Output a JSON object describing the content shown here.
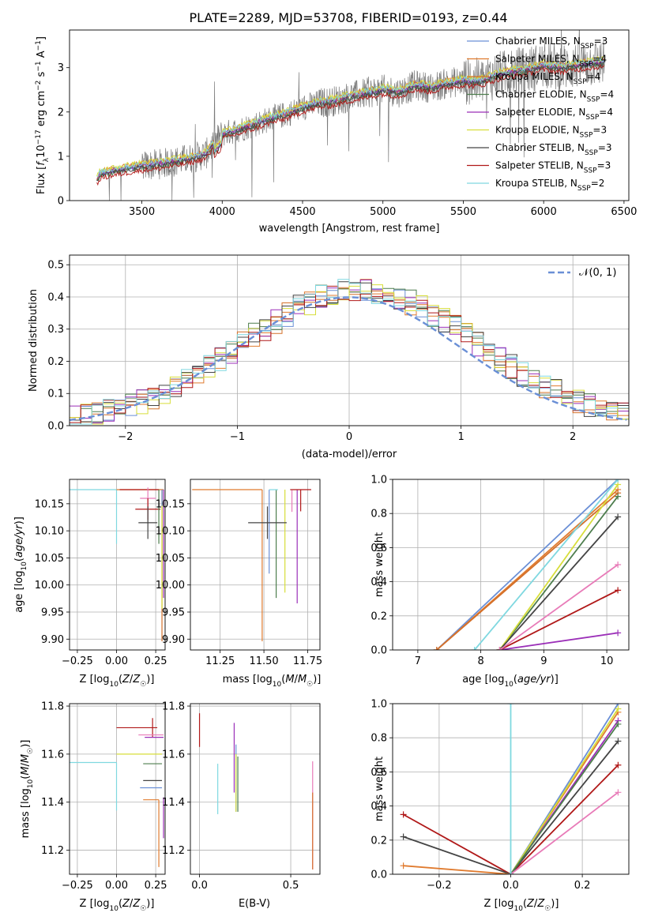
{
  "title": "PLATE=2289, MJD=53708, FIBERID=0193, z=0.44",
  "model_colors": {
    "chabrier_miles": "#6a8fd6",
    "salpeter_miles": "#e07b2f",
    "kroupa_miles": "#d4702a",
    "chabrier_elodie": "#4d7d4d",
    "salpeter_elodie": "#9b2fb8",
    "kroupa_elodie": "#d7de3a",
    "chabrier_stelib": "#444444",
    "salpeter_stelib": "#b01818",
    "kroupa_stelib": "#7fd8e0",
    "data": "#7a7a7a",
    "pink": "#e87bb8",
    "gray": "#999999"
  },
  "chart_data": [
    {
      "type": "line",
      "xlabel": "wavelength [Angstrom, rest frame]",
      "ylabel": "Flux [f_λ 10^-17 erg cm^-2 s^-1 A^-1]",
      "xlim": [
        3050,
        6530
      ],
      "ylim": [
        0,
        3.85
      ],
      "x_ticks": [
        "3500",
        "4000",
        "4500",
        "5000",
        "5500",
        "6000",
        "6500"
      ],
      "y_ticks": [
        "0",
        "1",
        "2",
        "3"
      ],
      "grid": false,
      "legend_position": "right",
      "legend": [
        {
          "name": "Chabrier MILES, N",
          "sub": "SSP",
          "suffix": "=3",
          "color_key": "chabrier_miles"
        },
        {
          "name": "Salpeter MILES, N",
          "sub": "SSP",
          "suffix": "=4",
          "color_key": "salpeter_miles"
        },
        {
          "name": "Kroupa MILES, N",
          "sub": "SSP",
          "suffix": "=4",
          "color_key": "kroupa_miles"
        },
        {
          "name": "Chabrier ELODIE, N",
          "sub": "SSP",
          "suffix": "=4",
          "color_key": "chabrier_elodie"
        },
        {
          "name": "Salpeter ELODIE, N",
          "sub": "SSP",
          "suffix": "=4",
          "color_key": "salpeter_elodie"
        },
        {
          "name": "Kroupa ELODIE, N",
          "sub": "SSP",
          "suffix": "=3",
          "color_key": "kroupa_elodie"
        },
        {
          "name": "Chabrier STELIB, N",
          "sub": "SSP",
          "suffix": "=3",
          "color_key": "chabrier_stelib"
        },
        {
          "name": "Salpeter STELIB, N",
          "sub": "SSP",
          "suffix": "=3",
          "color_key": "salpeter_stelib"
        },
        {
          "name": "Kroupa STELIB, N",
          "sub": "SSP",
          "suffix": "=2",
          "color_key": "kroupa_stelib"
        }
      ],
      "continuum": {
        "x": [
          3220,
          3240,
          3300,
          3400,
          3500,
          3600,
          3700,
          3800,
          3900,
          3950,
          4000,
          4100,
          4200,
          4300,
          4400,
          4500,
          4600,
          4700,
          4800,
          4900,
          5000,
          5100,
          5200,
          5300,
          5400,
          5500,
          5600,
          5700,
          5800,
          5900,
          6000,
          6100,
          6200,
          6300,
          6380
        ],
        "y": [
          0.45,
          0.6,
          0.65,
          0.72,
          0.78,
          0.82,
          0.88,
          0.95,
          1.05,
          1.3,
          1.5,
          1.6,
          1.72,
          1.85,
          1.95,
          2.1,
          2.2,
          2.25,
          2.35,
          2.42,
          2.5,
          2.45,
          2.6,
          2.55,
          2.65,
          2.7,
          2.68,
          2.82,
          2.9,
          2.95,
          3.05,
          3.0,
          3.05,
          3.1,
          3.12
        ]
      },
      "model_offsets": [
        0.0,
        0.06,
        0.03,
        -0.04,
        0.02,
        0.08,
        -0.03,
        -0.1,
        0.05
      ]
    },
    {
      "type": "histogram",
      "xlabel": "(data-model)/error",
      "ylabel": "Normed distribution",
      "xlim": [
        -2.5,
        2.5
      ],
      "ylim": [
        0,
        0.53
      ],
      "x_ticks": [
        "-2",
        "-1",
        "0",
        "1",
        "2"
      ],
      "y_ticks": [
        "0.0",
        "0.1",
        "0.2",
        "0.3",
        "0.4",
        "0.5"
      ],
      "grid": true,
      "legend": [
        {
          "name": "𝒩(0, 1)",
          "style": "dashed",
          "color_key": "chabrier_miles"
        }
      ],
      "legend_position": "top-right",
      "bin_width": 0.1,
      "reference_curve": "normal(0,1)"
    },
    {
      "type": "errorbar",
      "xlabel": "Z [log10(Z/Z☉)]",
      "ylabel": "age [log10(age/yr)]",
      "xlim": [
        -0.3,
        0.31
      ],
      "ylim": [
        9.88,
        10.195
      ],
      "x_ticks": [
        "-0.25",
        "0.00",
        "0.25"
      ],
      "y_ticks": [
        "9.90",
        "9.95",
        "10.00",
        "10.05",
        "10.10",
        "10.15"
      ],
      "points": [
        {
          "x": 0.0,
          "y": 10.176,
          "xl": 0.3,
          "xh": 0.0,
          "yl": 0.1,
          "yh": 0.0,
          "color_key": "kroupa_stelib"
        },
        {
          "x": 0.27,
          "y": 10.176,
          "xl": 0.27,
          "xh": 0.02,
          "yl": 0.0,
          "yh": 0.0,
          "color_key": "salpeter_miles"
        },
        {
          "x": 0.29,
          "y": 10.176,
          "xl": 0.0,
          "xh": 0.01,
          "yl": 0.28,
          "yh": 0.0,
          "color_key": "kroupa_miles"
        },
        {
          "x": 0.3,
          "y": 10.176,
          "xl": 0.0,
          "xh": 0.0,
          "yl": 0.2,
          "yh": 0.0,
          "color_key": "salpeter_elodie"
        },
        {
          "x": 0.29,
          "y": 10.176,
          "xl": 0.0,
          "xh": 0.0,
          "yl": 0.22,
          "yh": 0.0,
          "color_key": "kroupa_elodie"
        },
        {
          "x": 0.22,
          "y": 10.176,
          "xl": 0.2,
          "xh": 0.05,
          "yl": 0.0,
          "yh": 0.0,
          "color_key": "salpeter_stelib"
        },
        {
          "x": 0.2,
          "y": 10.16,
          "xl": 0.05,
          "xh": 0.05,
          "yl": 0.02,
          "yh": 0.02,
          "color_key": "pink"
        },
        {
          "x": 0.2,
          "y": 10.14,
          "xl": 0.08,
          "xh": 0.08,
          "yl": 0.02,
          "yh": 0.02,
          "color_key": "salpeter_stelib"
        },
        {
          "x": 0.2,
          "y": 10.115,
          "xl": 0.06,
          "xh": 0.06,
          "yl": 0.03,
          "yh": 0.03,
          "color_key": "chabrier_stelib"
        },
        {
          "x": 0.27,
          "y": 10.176,
          "xl": 0.0,
          "xh": 0.0,
          "yl": 0.1,
          "yh": 0.0,
          "color_key": "chabrier_elodie"
        },
        {
          "x": 0.29,
          "y": 10.176,
          "xl": 0.0,
          "xh": 0.0,
          "yl": 0.03,
          "yh": 0.0,
          "color_key": "chabrier_miles"
        }
      ]
    },
    {
      "type": "errorbar",
      "xlabel": "mass [log10(M/M☉)]",
      "ylabel": "",
      "xlim": [
        11.08,
        11.82
      ],
      "ylim": [
        9.88,
        10.195
      ],
      "x_ticks": [
        "11.25",
        "11.50",
        "11.75"
      ],
      "y_ticks": [
        "9.90",
        "9.95",
        "10.00",
        "10.05",
        "10.10",
        "10.15"
      ],
      "points": [
        {
          "x": 11.49,
          "y": 10.176,
          "xl": 0.4,
          "xh": 0.0,
          "yl": 0.28,
          "yh": 0.0,
          "color_key": "salpeter_miles"
        },
        {
          "x": 11.57,
          "y": 10.176,
          "xl": 0.0,
          "xh": 0.0,
          "yl": 0.2,
          "yh": 0.0,
          "color_key": "chabrier_elodie"
        },
        {
          "x": 11.62,
          "y": 10.176,
          "xl": 0.0,
          "xh": 0.0,
          "yl": 0.19,
          "yh": 0.0,
          "color_key": "kroupa_elodie"
        },
        {
          "x": 11.69,
          "y": 10.176,
          "xl": 0.0,
          "xh": 0.0,
          "yl": 0.21,
          "yh": 0.0,
          "color_key": "salpeter_elodie"
        },
        {
          "x": 11.53,
          "y": 10.176,
          "xl": 0.0,
          "xh": 0.0,
          "yl": 0.155,
          "yh": 0.0,
          "color_key": "chabrier_miles"
        },
        {
          "x": 11.71,
          "y": 10.176,
          "xl": 0.06,
          "xh": 0.06,
          "yl": 0.04,
          "yh": 0.0,
          "color_key": "salpeter_stelib"
        },
        {
          "x": 11.66,
          "y": 10.155,
          "xl": 0.0,
          "xh": 0.0,
          "yl": 0.02,
          "yh": 0.02,
          "color_key": "pink"
        },
        {
          "x": 11.52,
          "y": 10.115,
          "xl": 0.11,
          "xh": 0.11,
          "yl": 0.03,
          "yh": 0.03,
          "color_key": "chabrier_stelib"
        },
        {
          "x": 11.58,
          "y": 10.176,
          "xl": 0.05,
          "xh": 0.0,
          "yl": 0.0,
          "yh": 0.0,
          "color_key": "kroupa_stelib"
        }
      ]
    },
    {
      "type": "line",
      "xlabel": "age [log10(age/yr)]",
      "ylabel": "mass weight",
      "xlim": [
        6.6,
        10.35
      ],
      "ylim": [
        0,
        1.0
      ],
      "x_ticks": [
        "7",
        "8",
        "9",
        "10"
      ],
      "y_ticks": [
        "0.0",
        "0.2",
        "0.4",
        "0.6",
        "0.8",
        "1.0"
      ],
      "grid": true,
      "series": [
        {
          "x": [
            7.3,
            10.176
          ],
          "y": [
            0.0,
            1.0
          ],
          "color_key": "chabrier_miles"
        },
        {
          "x": [
            7.3,
            10.176
          ],
          "y": [
            0.0,
            0.94
          ],
          "color_key": "salpeter_miles"
        },
        {
          "x": [
            7.3,
            10.176
          ],
          "y": [
            0.0,
            0.92
          ],
          "color_key": "kroupa_miles"
        },
        {
          "x": [
            8.3,
            10.176
          ],
          "y": [
            0.0,
            0.9
          ],
          "color_key": "chabrier_elodie"
        },
        {
          "x": [
            8.3,
            10.176
          ],
          "y": [
            0.0,
            0.1
          ],
          "color_key": "salpeter_elodie"
        },
        {
          "x": [
            8.3,
            10.176
          ],
          "y": [
            0.0,
            0.97
          ],
          "color_key": "kroupa_elodie"
        },
        {
          "x": [
            8.3,
            10.176
          ],
          "y": [
            0.0,
            0.78
          ],
          "color_key": "chabrier_stelib"
        },
        {
          "x": [
            8.3,
            10.176
          ],
          "y": [
            0.0,
            0.35
          ],
          "color_key": "salpeter_stelib"
        },
        {
          "x": [
            7.9,
            10.176
          ],
          "y": [
            0.0,
            1.0
          ],
          "color_key": "kroupa_stelib"
        },
        {
          "x": [
            8.3,
            10.176
          ],
          "y": [
            0.0,
            0.5
          ],
          "color_key": "pink"
        }
      ]
    },
    {
      "type": "errorbar",
      "xlabel": "Z [log10(Z/Z☉)]",
      "ylabel": "mass [log10(M/M☉)]",
      "xlim": [
        -0.3,
        0.31
      ],
      "ylim": [
        11.1,
        11.81
      ],
      "x_ticks": [
        "-0.25",
        "0.00",
        "0.25"
      ],
      "y_ticks": [
        "11.2",
        "11.4",
        "11.6",
        "11.8"
      ],
      "points": [
        {
          "x": 0.0,
          "y": 11.565,
          "xl": 0.3,
          "xh": 0.0,
          "yl": 0.2,
          "yh": 0.0,
          "color_key": "kroupa_stelib"
        },
        {
          "x": 0.23,
          "y": 11.71,
          "xl": 0.23,
          "xh": 0.03,
          "yl": 0.04,
          "yh": 0.04,
          "color_key": "salpeter_stelib"
        },
        {
          "x": 0.22,
          "y": 11.68,
          "xl": 0.08,
          "xh": 0.08,
          "yl": 0.0,
          "yh": 0.0,
          "color_key": "pink"
        },
        {
          "x": 0.24,
          "y": 11.67,
          "xl": 0.06,
          "xh": 0.06,
          "yl": 0.0,
          "yh": 0.0,
          "color_key": "salpeter_elodie"
        },
        {
          "x": 0.29,
          "y": 11.6,
          "xl": 0.29,
          "xh": 0.0,
          "yl": 0.0,
          "yh": 0.0,
          "color_key": "kroupa_elodie"
        },
        {
          "x": 0.29,
          "y": 11.56,
          "xl": 0.12,
          "xh": 0.0,
          "yl": 0.0,
          "yh": 0.0,
          "color_key": "chabrier_elodie"
        },
        {
          "x": 0.29,
          "y": 11.49,
          "xl": 0.12,
          "xh": 0.0,
          "yl": 0.0,
          "yh": 0.0,
          "color_key": "chabrier_stelib"
        },
        {
          "x": 0.29,
          "y": 11.46,
          "xl": 0.14,
          "xh": 0.0,
          "yl": 0.0,
          "yh": 0.0,
          "color_key": "chabrier_miles"
        },
        {
          "x": 0.27,
          "y": 11.41,
          "xl": 0.1,
          "xh": 0.0,
          "yl": 0.28,
          "yh": 0.0,
          "color_key": "salpeter_miles"
        },
        {
          "x": 0.3,
          "y": 11.35,
          "xl": 0.0,
          "xh": 0.0,
          "yl": 0.1,
          "yh": 0.07,
          "color_key": "salpeter_elodie"
        }
      ]
    },
    {
      "type": "errorbar",
      "xlabel": "E(B-V)",
      "ylabel": "",
      "xlim": [
        -0.05,
        0.66
      ],
      "ylim": [
        11.1,
        11.81
      ],
      "x_ticks": [
        "0.0",
        "0.5"
      ],
      "y_ticks": [
        "11.2",
        "11.4",
        "11.6",
        "11.8"
      ],
      "points": [
        {
          "x": 0.0,
          "y": 11.7,
          "xl": 0.0,
          "xh": 0.0,
          "yl": 0.07,
          "yh": 0.07,
          "color_key": "salpeter_stelib"
        },
        {
          "x": 0.1,
          "y": 11.45,
          "xl": 0.0,
          "xh": 0.0,
          "yl": 0.1,
          "yh": 0.11,
          "color_key": "kroupa_stelib"
        },
        {
          "x": 0.19,
          "y": 11.58,
          "xl": 0.0,
          "xh": 0.0,
          "yl": 0.14,
          "yh": 0.15,
          "color_key": "salpeter_elodie"
        },
        {
          "x": 0.2,
          "y": 11.5,
          "xl": 0.0,
          "xh": 0.0,
          "yl": 0.14,
          "yh": 0.14,
          "color_key": "chabrier_miles"
        },
        {
          "x": 0.2,
          "y": 11.48,
          "xl": 0.0,
          "xh": 0.0,
          "yl": 0.12,
          "yh": 0.12,
          "color_key": "kroupa_elodie"
        },
        {
          "x": 0.21,
          "y": 11.5,
          "xl": 0.0,
          "xh": 0.0,
          "yl": 0.14,
          "yh": 0.09,
          "color_key": "chabrier_elodie"
        },
        {
          "x": 0.62,
          "y": 11.4,
          "xl": 0.0,
          "xh": 0.0,
          "yl": 0.28,
          "yh": 0.17,
          "color_key": "pink"
        },
        {
          "x": 0.62,
          "y": 11.3,
          "xl": 0.0,
          "xh": 0.0,
          "yl": 0.18,
          "yh": 0.14,
          "color_key": "kroupa_miles"
        }
      ]
    },
    {
      "type": "line",
      "xlabel": "Z [log10(Z/Z☉)]",
      "ylabel": "mass weight",
      "xlim": [
        -0.33,
        0.33
      ],
      "ylim": [
        0,
        1.0
      ],
      "x_ticks": [
        "-0.2",
        "0.0",
        "0.2"
      ],
      "y_ticks": [
        "0.0",
        "0.2",
        "0.4",
        "0.6",
        "0.8",
        "1.0"
      ],
      "grid": true,
      "series": [
        {
          "x": [
            -0.3,
            0.0,
            0.3
          ],
          "y": [
            0.35,
            0.0,
            0.64
          ],
          "color_key": "salpeter_stelib"
        },
        {
          "x": [
            -0.3,
            0.0,
            0.3
          ],
          "y": [
            0.22,
            0.0,
            0.78
          ],
          "color_key": "chabrier_stelib"
        },
        {
          "x": [
            -0.3,
            0.0,
            0.3
          ],
          "y": [
            0.05,
            0.0,
            0.95
          ],
          "color_key": "salpeter_miles"
        },
        {
          "x": [
            0.0,
            0.3
          ],
          "y": [
            0.0,
            1.0
          ],
          "color_key": "chabrier_miles"
        },
        {
          "x": [
            0.0,
            0.3
          ],
          "y": [
            0.0,
            0.9
          ],
          "color_key": "salpeter_elodie"
        },
        {
          "x": [
            0.0,
            0.3
          ],
          "y": [
            0.0,
            0.97
          ],
          "color_key": "kroupa_elodie"
        },
        {
          "x": [
            0.0,
            0.3
          ],
          "y": [
            0.0,
            0.88
          ],
          "color_key": "chabrier_elodie"
        },
        {
          "x": [
            0.0,
            0.3
          ],
          "y": [
            0.0,
            0.48
          ],
          "color_key": "pink"
        },
        {
          "x": [
            0.0,
            0.0
          ],
          "y": [
            0.0,
            1.0
          ],
          "color_key": "kroupa_stelib"
        }
      ]
    }
  ]
}
